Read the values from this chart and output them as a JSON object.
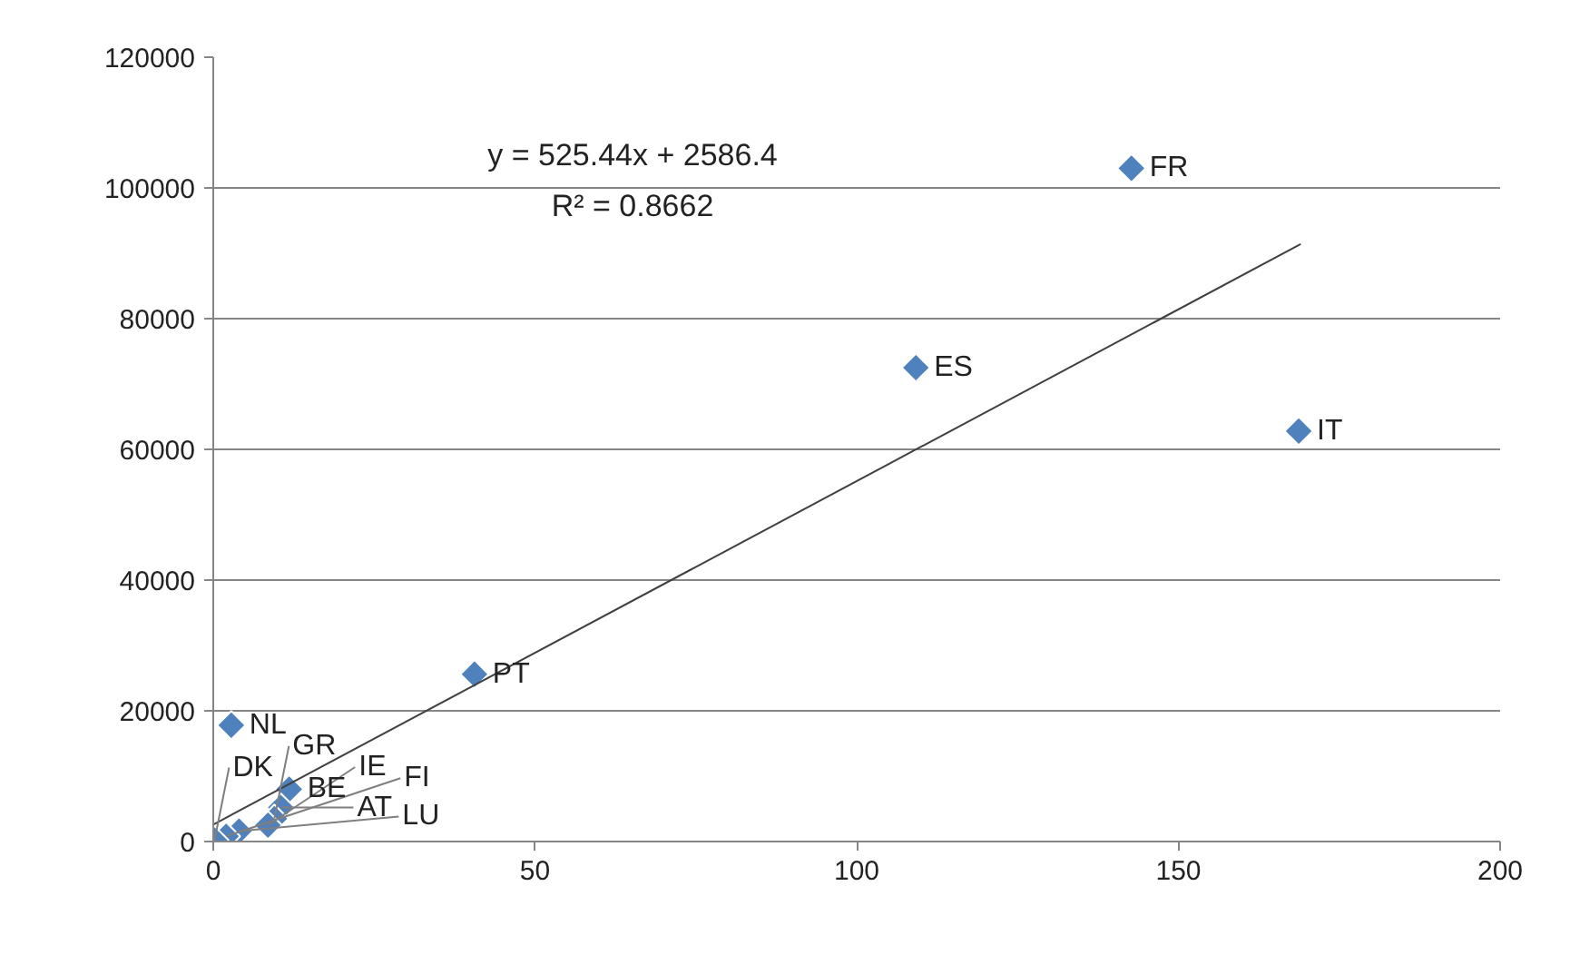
{
  "chart_data": {
    "type": "scatter",
    "xlim": [
      0,
      200
    ],
    "xticks": [
      0,
      50,
      100,
      150,
      200
    ],
    "ylim": [
      0,
      120000
    ],
    "yticks": [
      0,
      20000,
      40000,
      60000,
      80000,
      100000,
      120000
    ],
    "grid": "y",
    "series": [
      {
        "marker": "diamond",
        "color": "#4f81bd",
        "x": [
          142.7,
          109.2,
          168.7,
          40.6,
          2.8,
          11.8,
          10.5,
          9.5,
          8.5,
          4,
          2,
          0.2
        ],
        "values": [
          103000,
          72500,
          62800,
          25600,
          17800,
          8000,
          5200,
          3500,
          2500,
          1600,
          800,
          200
        ]
      },
      {
        "type": "line",
        "color": "#404040",
        "x": [
          0,
          169
        ],
        "values": [
          2600,
          91400
        ]
      }
    ],
    "annotations": [
      {
        "text": "FR",
        "x": 142.7,
        "y": 103000
      },
      {
        "text": "ES",
        "x": 109.2,
        "y": 72500
      },
      {
        "text": "IT",
        "x": 168.7,
        "y": 62800
      },
      {
        "text": "PT",
        "x": 40.6,
        "y": 25600
      },
      {
        "text": "NL",
        "x": 2.8,
        "y": 17800
      },
      {
        "text": "BE",
        "x": 11.8,
        "y": 8000
      },
      {
        "text": "AT",
        "x": 10.5,
        "y": 5200
      },
      {
        "text": "GR",
        "x": 9.5,
        "y": 3500
      },
      {
        "text": "IE",
        "x": 8.5,
        "y": 2500
      },
      {
        "text": "LU",
        "x": 4,
        "y": 1600
      },
      {
        "text": "FI",
        "x": 2,
        "y": 800
      },
      {
        "text": "DK",
        "x": 0.2,
        "y": 200
      },
      "y = 525.44x + 2586.4",
      "R² = 0.8662"
    ]
  }
}
